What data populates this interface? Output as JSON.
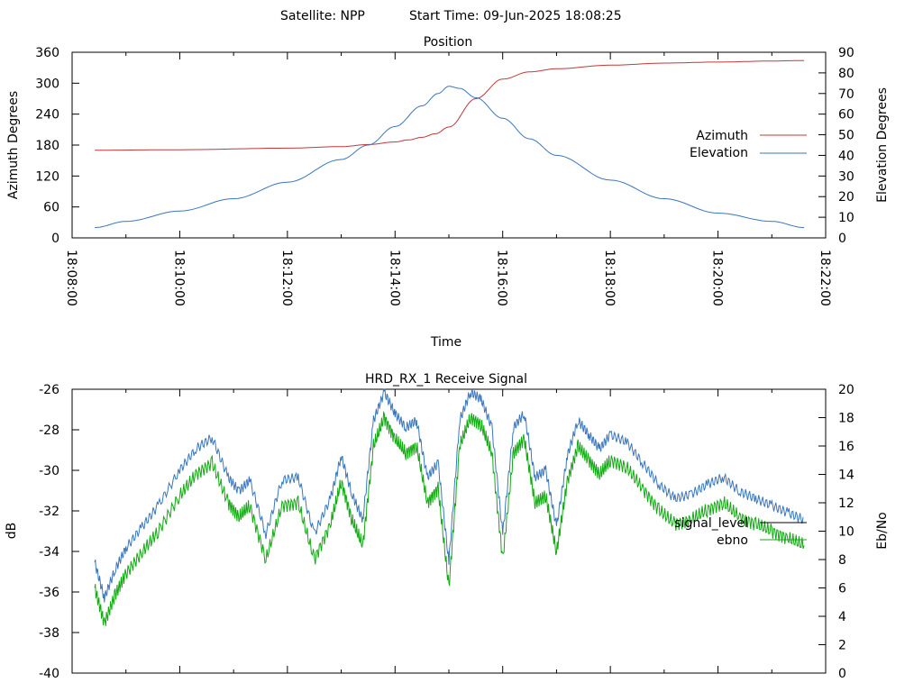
{
  "header": {
    "satellite": "Satellite: NPP",
    "start_time": "Start Time: 09-Jun-2025 18:08:25"
  },
  "colors": {
    "azimuth": "#c0393b",
    "elevation": "#3a77bd",
    "signal_level": "#000000",
    "ebno": "#11aa11"
  },
  "chart_data": [
    {
      "type": "line",
      "title": "Position",
      "xlabel": "Time",
      "ylabel_left": "Azimuth Degrees",
      "ylabel_right": "Elevation Degrees",
      "x_ticks": [
        "18:08:00",
        "18:10:00",
        "18:12:00",
        "18:14:00",
        "18:16:00",
        "18:18:00",
        "18:20:00",
        "18:22:00"
      ],
      "xlim_minutes": [
        0,
        14
      ],
      "ylim_left": [
        0,
        360
      ],
      "yticks_left": [
        "0",
        "60",
        "120",
        "180",
        "240",
        "300",
        "360"
      ],
      "ylim_right": [
        0,
        90
      ],
      "yticks_right": [
        "0",
        "10",
        "20",
        "30",
        "40",
        "50",
        "60",
        "70",
        "80",
        "90"
      ],
      "legend_position": "right",
      "series": [
        {
          "name": "Azimuth",
          "axis": "left",
          "color": "#c0393b",
          "x_minutes": [
            0.42,
            2.0,
            4.0,
            5.0,
            5.5,
            6.0,
            6.25,
            6.5,
            6.75,
            7.0,
            7.5,
            8.0,
            8.5,
            9.0,
            10.0,
            11.0,
            12.0,
            13.0,
            13.6
          ],
          "values": [
            170,
            171,
            174,
            177,
            181,
            186,
            190,
            195,
            202,
            215,
            270,
            308,
            322,
            328,
            335,
            339,
            341,
            343,
            344
          ]
        },
        {
          "name": "Elevation",
          "axis": "right",
          "color": "#3a77bd",
          "x_minutes": [
            0.42,
            1.0,
            2.0,
            3.0,
            4.0,
            5.0,
            5.5,
            6.0,
            6.5,
            6.8,
            7.0,
            7.2,
            7.5,
            8.0,
            8.5,
            9.0,
            10.0,
            11.0,
            12.0,
            13.0,
            13.6
          ],
          "values": [
            5,
            8,
            13,
            19,
            27,
            38,
            45,
            54,
            64,
            70,
            73.5,
            72.5,
            68,
            58,
            48,
            40,
            28,
            19,
            12,
            8,
            5
          ]
        }
      ]
    },
    {
      "type": "line",
      "title": "HRD_RX_1 Receive Signal",
      "xlabel": "",
      "ylabel_left": "dB",
      "ylabel_right": "Eb/No",
      "x_ticks": [
        "18:08:00",
        "18:10:00",
        "18:12:00",
        "18:14:00",
        "18:16:00",
        "18:18:00",
        "18:20:00",
        "18:22:00"
      ],
      "xlim_minutes": [
        0,
        14
      ],
      "ylim_left": [
        -40,
        -26
      ],
      "yticks_left": [
        "-40",
        "-38",
        "-36",
        "-34",
        "-32",
        "-30",
        "-28",
        "-26"
      ],
      "ylim_right": [
        0,
        20
      ],
      "yticks_right": [
        "0",
        "2",
        "4",
        "6",
        "8",
        "10",
        "12",
        "14",
        "16",
        "18",
        "20"
      ],
      "legend_position": "right",
      "series": [
        {
          "name": "signal_level",
          "axis": "left",
          "color": "#000000",
          "x_minutes": [],
          "values": []
        },
        {
          "name": "ebno",
          "axis": "right",
          "color": "#11aa11",
          "x_minutes": [
            0.42,
            0.6,
            0.8,
            1.0,
            1.3,
            1.6,
            2.0,
            2.3,
            2.6,
            2.9,
            3.1,
            3.3,
            3.6,
            3.9,
            4.2,
            4.5,
            4.8,
            5.0,
            5.2,
            5.4,
            5.6,
            5.8,
            6.0,
            6.2,
            6.4,
            6.6,
            6.8,
            7.0,
            7.2,
            7.4,
            7.6,
            7.8,
            8.0,
            8.2,
            8.4,
            8.6,
            8.8,
            9.0,
            9.2,
            9.4,
            9.6,
            9.8,
            10.0,
            10.3,
            10.6,
            10.9,
            11.2,
            11.5,
            11.8,
            12.1,
            12.4,
            12.7,
            13.0,
            13.3,
            13.6
          ],
          "values": [
            6.0,
            3.5,
            5.5,
            7.0,
            8.5,
            10.0,
            12.5,
            14.0,
            14.8,
            12.0,
            11.0,
            11.8,
            8.0,
            11.8,
            12.0,
            8.0,
            10.5,
            13.5,
            10.8,
            9.0,
            16.0,
            18.0,
            16.5,
            15.5,
            16.0,
            12.0,
            13.0,
            6.0,
            16.0,
            18.0,
            17.5,
            15.5,
            8.0,
            15.5,
            16.5,
            12.0,
            12.5,
            8.5,
            13.5,
            16.0,
            15.0,
            14.0,
            15.0,
            14.5,
            13.0,
            11.5,
            10.5,
            10.8,
            11.5,
            12.0,
            11.0,
            10.5,
            10.0,
            9.5,
            9.0
          ]
        }
      ]
    }
  ]
}
